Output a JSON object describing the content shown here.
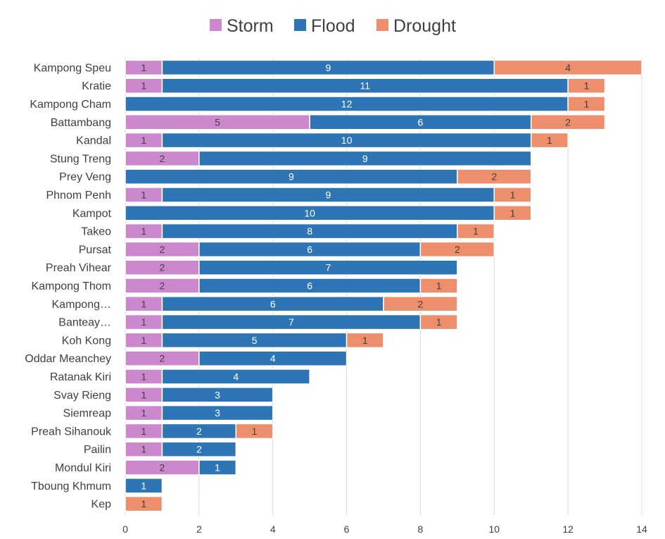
{
  "chart_data": {
    "type": "bar",
    "orientation": "horizontal",
    "stacked": true,
    "categories": [
      "Kampong Speu",
      "Kratie",
      "Kampong Cham",
      "Battambang",
      "Kandal",
      "Stung Treng",
      "Prey Veng",
      "Phnom Penh",
      "Kampot",
      "Takeo",
      "Pursat",
      "Preah Vihear",
      "Kampong Thom",
      "Kampong…",
      "Banteay…",
      "Koh Kong",
      "Oddar Meanchey",
      "Ratanak Kiri",
      "Svay Rieng",
      "Siemreap",
      "Preah Sihanouk",
      "Pailin",
      "Mondul Kiri",
      "Tboung Khmum",
      "Kep"
    ],
    "series": [
      {
        "name": "Storm",
        "color": "#cc88cc",
        "label_color": "#404040",
        "values": [
          1,
          1,
          0,
          5,
          1,
          2,
          0,
          1,
          0,
          1,
          2,
          2,
          2,
          1,
          1,
          1,
          2,
          1,
          1,
          1,
          1,
          1,
          2,
          0,
          0
        ]
      },
      {
        "name": "Flood",
        "color": "#2e75b6",
        "label_color": "#ffffff",
        "values": [
          9,
          11,
          12,
          6,
          10,
          9,
          9,
          9,
          10,
          8,
          6,
          7,
          6,
          6,
          7,
          5,
          4,
          4,
          3,
          3,
          2,
          2,
          1,
          1,
          0
        ]
      },
      {
        "name": "Drought",
        "color": "#ed8f6c",
        "label_color": "#404040",
        "values": [
          4,
          1,
          1,
          2,
          1,
          0,
          2,
          1,
          1,
          1,
          2,
          0,
          1,
          2,
          1,
          1,
          0,
          0,
          0,
          0,
          1,
          0,
          0,
          0,
          1
        ]
      }
    ],
    "xlim": [
      0,
      14
    ],
    "xticks": [
      0,
      2,
      4,
      6,
      8,
      10,
      12,
      14
    ],
    "grid": true,
    "legend_position": "top-center",
    "title": "",
    "xlabel": "",
    "ylabel": ""
  }
}
